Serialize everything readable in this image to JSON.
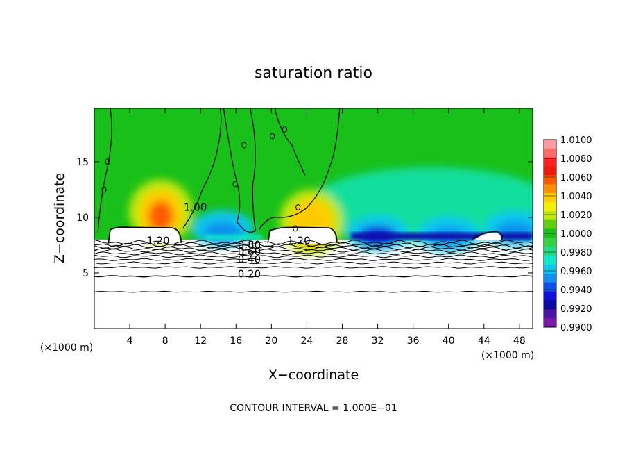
{
  "chart_data": {
    "type": "heatmap",
    "title": "saturation ratio",
    "xlabel": "X−coordinate",
    "ylabel": "Z−coordinate",
    "xunit": "(×1000 m)",
    "yunit": "(×1000 m)",
    "xlim": [
      0,
      49.5
    ],
    "ylim": [
      0,
      19.8
    ],
    "xticks": [
      4,
      8,
      12,
      16,
      20,
      24,
      28,
      32,
      36,
      40,
      44,
      48
    ],
    "yticks": [
      5,
      10,
      15
    ],
    "footer": "CONTOUR INTERVAL = 1.000E−01",
    "colorbar": {
      "levels": [
        "1.0100",
        "1.0080",
        "1.0060",
        "1.0040",
        "1.0020",
        "1.0000",
        "0.9980",
        "0.9960",
        "0.9940",
        "0.9920",
        "0.9900"
      ],
      "colors": [
        "#ff9aa2",
        "#ff6a6a",
        "#ff2020",
        "#ee1a0a",
        "#ff5a00",
        "#ff9000",
        "#ffcc00",
        "#f4f000",
        "#bde80a",
        "#5fd010",
        "#19c019",
        "#34d240",
        "#22dc84",
        "#10e8c8",
        "#10c8ee",
        "#1090ee",
        "#1050e8",
        "#1010d8",
        "#0a0aa8",
        "#4a14a8",
        "#7a1aa8"
      ]
    },
    "contour_labels": [
      {
        "text": "1.20",
        "x": 7.2,
        "y": 7.6
      },
      {
        "text": "1.20",
        "x": 23.1,
        "y": 7.6
      },
      {
        "text": "1.00",
        "x": 11.4,
        "y": 10.6
      },
      {
        "text": "0.80",
        "x": 17.5,
        "y": 7.2
      },
      {
        "text": "0.60",
        "x": 17.5,
        "y": 6.6
      },
      {
        "text": "0.40",
        "x": 17.5,
        "y": 5.9
      },
      {
        "text": "0.20",
        "x": 17.5,
        "y": 4.6
      }
    ],
    "fields": {
      "zero_line": 8.0,
      "cloud_top": 20.0,
      "moist_regions": [
        {
          "x": 7.5,
          "z": 10.5,
          "value": 1.0055
        },
        {
          "x": 24.5,
          "z": 9.6,
          "value": 1.0045
        }
      ],
      "dry_regions": [
        {
          "x": 14.5,
          "z": 9.0,
          "value": 0.9948
        },
        {
          "x": 32.0,
          "z": 8.6,
          "value": 0.993
        },
        {
          "x": 40.0,
          "z": 8.5,
          "value": 0.9945
        },
        {
          "x": 47.5,
          "z": 9.0,
          "value": 0.995
        }
      ]
    }
  }
}
